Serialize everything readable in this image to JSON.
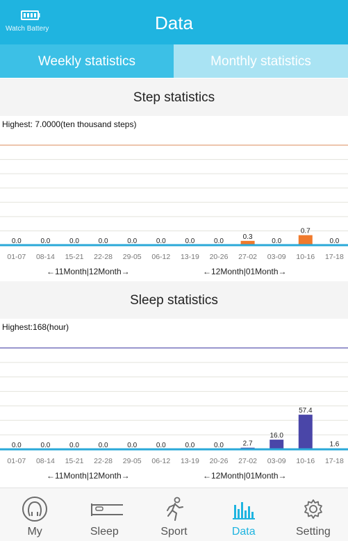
{
  "header": {
    "battery_label": "Watch Battery",
    "title": "Data",
    "battery_icon": "battery-icon"
  },
  "tabs": [
    {
      "label": "Weekly statistics",
      "selected": false
    },
    {
      "label": "Monthly statistics",
      "selected": true
    }
  ],
  "colors": {
    "accent": "#1fb4e0",
    "steps_bar": "#f07a2c",
    "sleep_bar": "#4a46a8",
    "baseline": "#2aa9d8"
  },
  "steps": {
    "title": "Step statistics",
    "highest_label": "Highest:  7.0000(ten thousand steps)",
    "range_left": "←11Month|12Month→",
    "range_right": "←12Month|01Month→"
  },
  "sleep": {
    "title": "Sleep statistics",
    "highest_label": "Highest:168(hour)",
    "range_left": "←11Month|12Month→",
    "range_right": "←12Month|01Month→"
  },
  "chart_data": [
    {
      "type": "bar",
      "title": "Step statistics",
      "categories": [
        "01-07",
        "08-14",
        "15-21",
        "22-28",
        "29-05",
        "06-12",
        "13-19",
        "20-26",
        "27-02",
        "03-09",
        "10-16",
        "17-18"
      ],
      "values": [
        0.0,
        0.0,
        0.0,
        0.0,
        0.0,
        0.0,
        0.0,
        0.0,
        0.3,
        0.0,
        0.7,
        0.0
      ],
      "value_labels": [
        "0.0",
        "0.0",
        "0.0",
        "0.0",
        "0.0",
        "0.0",
        "0.0",
        "0.0",
        "0.3",
        "0.0",
        "0.7",
        "0.0"
      ],
      "ylim": [
        0,
        7
      ],
      "grid": true
    },
    {
      "type": "bar",
      "title": "Sleep statistics",
      "categories": [
        "01-07",
        "08-14",
        "15-21",
        "22-28",
        "29-05",
        "06-12",
        "13-19",
        "20-26",
        "27-02",
        "03-09",
        "10-16",
        "17-18"
      ],
      "values": [
        0.0,
        0.0,
        0.0,
        0.0,
        0.0,
        0.0,
        0.0,
        0.0,
        2.7,
        16.0,
        57.4,
        1.6
      ],
      "value_labels": [
        "0.0",
        "0.0",
        "0.0",
        "0.0",
        "0.0",
        "0.0",
        "0.0",
        "0.0",
        "2.7",
        "16.0",
        "57.4",
        "1.6"
      ],
      "ylim": [
        0,
        168
      ],
      "grid": true
    }
  ],
  "nav": [
    {
      "label": "My",
      "icon": "person-icon",
      "active": false
    },
    {
      "label": "Sleep",
      "icon": "bed-icon",
      "active": false
    },
    {
      "label": "Sport",
      "icon": "running-icon",
      "active": false
    },
    {
      "label": "Data",
      "icon": "bar-chart-icon",
      "active": true
    },
    {
      "label": "Setting",
      "icon": "gear-icon",
      "active": false
    }
  ]
}
